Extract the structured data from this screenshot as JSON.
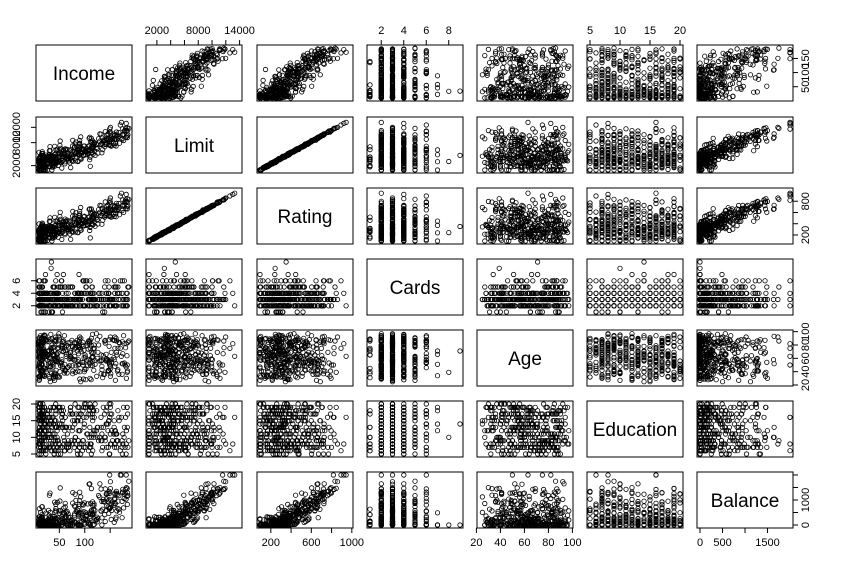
{
  "chart_data": {
    "type": "scatter",
    "variables": [
      "Income",
      "Limit",
      "Rating",
      "Cards",
      "Age",
      "Education",
      "Balance"
    ],
    "ranges": {
      "Income": [
        10,
        187
      ],
      "Limit": [
        855,
        13913
      ],
      "Rating": [
        93,
        982
      ],
      "Cards": [
        1,
        9
      ],
      "Age": [
        23,
        98
      ],
      "Education": [
        5,
        20
      ],
      "Balance": [
        0,
        1999
      ]
    },
    "tick_labels": {
      "Income": [
        "50",
        "100",
        "150"
      ],
      "Limit": [
        "2000",
        "8000",
        "14000"
      ],
      "Rating": [
        "200",
        "600",
        "1000"
      ],
      "Cards": [
        "2",
        "4",
        "6",
        "8"
      ],
      "Age": [
        "20",
        "40",
        "60",
        "80",
        "100"
      ],
      "Education": [
        "5",
        "10",
        "15",
        "20"
      ],
      "Balance": [
        "0",
        "500",
        "1500"
      ]
    },
    "outer_axes": {
      "left": [
        {
          "var": "Limit",
          "ticks": [
            2000,
            8000,
            12000
          ],
          "labels": [
            "2000",
            "8000",
            "12000"
          ]
        },
        {
          "var": "Cards",
          "ticks": [
            2,
            4,
            6
          ],
          "labels": [
            "2",
            "4",
            "6"
          ]
        },
        {
          "var": "Education",
          "ticks": [
            5,
            10,
            15,
            20
          ],
          "labels": [
            "5",
            "10",
            "15",
            "20"
          ]
        }
      ],
      "right": [
        {
          "var": "Income",
          "ticks": [
            50,
            100,
            150
          ],
          "labels": [
            "50",
            "100",
            "150"
          ]
        },
        {
          "var": "Rating",
          "ticks": [
            200,
            400,
            600,
            800
          ],
          "labels": [
            "200",
            "",
            "",
            "800"
          ]
        },
        {
          "var": "Age",
          "ticks": [
            20,
            40,
            60,
            80,
            100
          ],
          "labels": [
            "20",
            "40",
            "60",
            "80",
            "100"
          ]
        },
        {
          "var": "Balance",
          "ticks": [
            0,
            500,
            1000,
            1500,
            2000
          ],
          "labels": [
            "0",
            "",
            "1000",
            "",
            ""
          ]
        }
      ],
      "top": [
        {
          "var": "Limit",
          "ticks": [
            2000,
            4000,
            6000,
            8000,
            10000,
            12000,
            14000
          ],
          "labels": [
            "2000",
            "",
            "",
            "8000",
            "",
            "",
            "14000"
          ]
        },
        {
          "var": "Cards",
          "ticks": [
            2,
            4,
            6,
            8
          ],
          "labels": [
            "2",
            "4",
            "6",
            "8"
          ]
        },
        {
          "var": "Education",
          "ticks": [
            5,
            10,
            15,
            20
          ],
          "labels": [
            "5",
            "10",
            "15",
            "20"
          ]
        }
      ],
      "bottom": [
        {
          "var": "Income",
          "ticks": [
            50,
            100,
            150
          ],
          "labels": [
            "50",
            "100",
            ""
          ]
        },
        {
          "var": "Rating",
          "ticks": [
            200,
            400,
            600,
            800,
            1000
          ],
          "labels": [
            "200",
            "",
            "600",
            "",
            "1000"
          ]
        },
        {
          "var": "Age",
          "ticks": [
            20,
            40,
            60,
            80,
            100
          ],
          "labels": [
            "20",
            "40",
            "60",
            "80",
            "100"
          ]
        },
        {
          "var": "Balance",
          "ticks": [
            0,
            500,
            1000,
            1500
          ],
          "labels": [
            "0",
            "500",
            "",
            "1500"
          ]
        }
      ]
    },
    "n_points": 400,
    "marker": "open-circle",
    "grid": false,
    "legend": "none",
    "title": "",
    "colors": {
      "points": "#000000",
      "panel_border": "#000000",
      "background": "#ffffff"
    }
  }
}
